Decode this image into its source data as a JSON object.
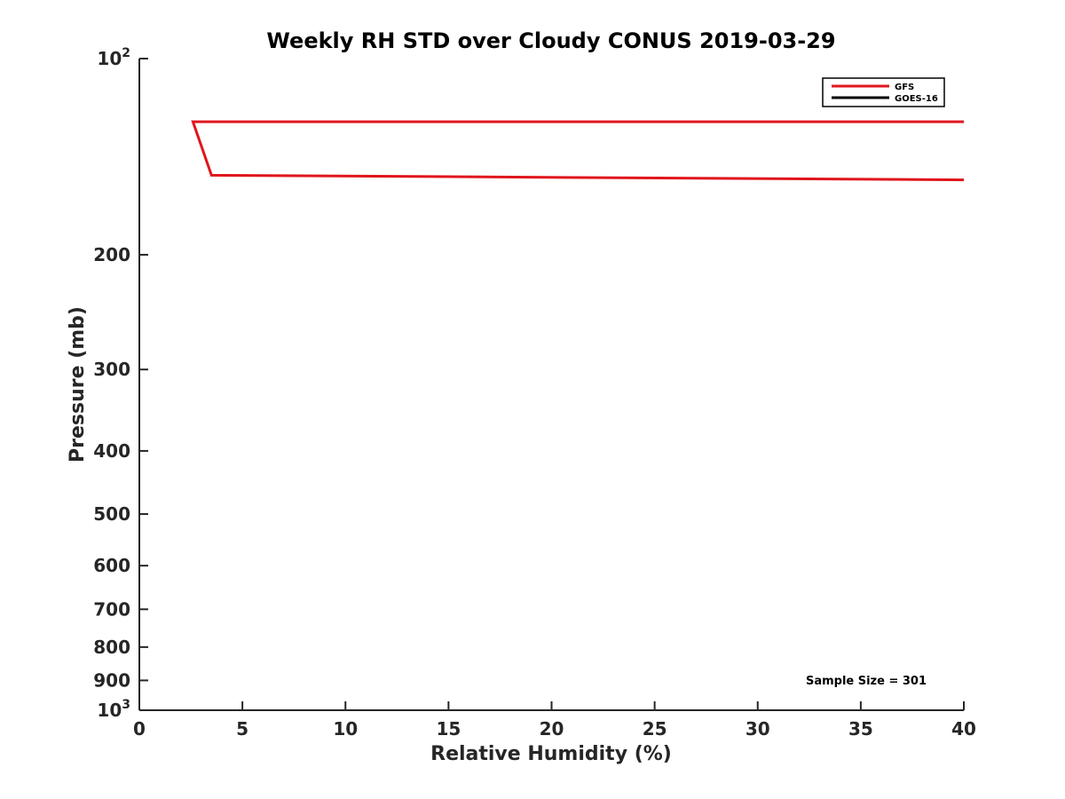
{
  "chart_data": {
    "type": "line",
    "title": "Weekly RH STD over Cloudy CONUS 2019-03-29",
    "xlabel": "Relative Humidity (%)",
    "ylabel": "Pressure (mb)",
    "xlim": [
      0,
      40
    ],
    "ylim": [
      100,
      1000
    ],
    "y_scale": "log",
    "y_reversed": true,
    "grid": false,
    "legend_position": "top-right",
    "x_ticks": [
      0,
      5,
      10,
      15,
      20,
      25,
      30,
      35,
      40
    ],
    "y_ticks": [
      {
        "value": 100,
        "label": "10",
        "sup": "2"
      },
      {
        "value": 200,
        "label": "200",
        "sup": ""
      },
      {
        "value": 300,
        "label": "300",
        "sup": ""
      },
      {
        "value": 400,
        "label": "400",
        "sup": ""
      },
      {
        "value": 500,
        "label": "500",
        "sup": ""
      },
      {
        "value": 600,
        "label": "600",
        "sup": ""
      },
      {
        "value": 700,
        "label": "700",
        "sup": ""
      },
      {
        "value": 800,
        "label": "800",
        "sup": ""
      },
      {
        "value": 900,
        "label": "900",
        "sup": ""
      },
      {
        "value": 1000,
        "label": "10",
        "sup": "3"
      }
    ],
    "series": [
      {
        "name": "GFS",
        "color": "#e0161c",
        "points": [
          {
            "x": 40,
            "y": 125
          },
          {
            "x": 2.6,
            "y": 125
          },
          {
            "x": 3.5,
            "y": 151
          },
          {
            "x": 40,
            "y": 153.5
          }
        ]
      },
      {
        "name": "GOES-16",
        "color": "#000000",
        "points": []
      }
    ],
    "annotation": "Sample Size = 301"
  }
}
